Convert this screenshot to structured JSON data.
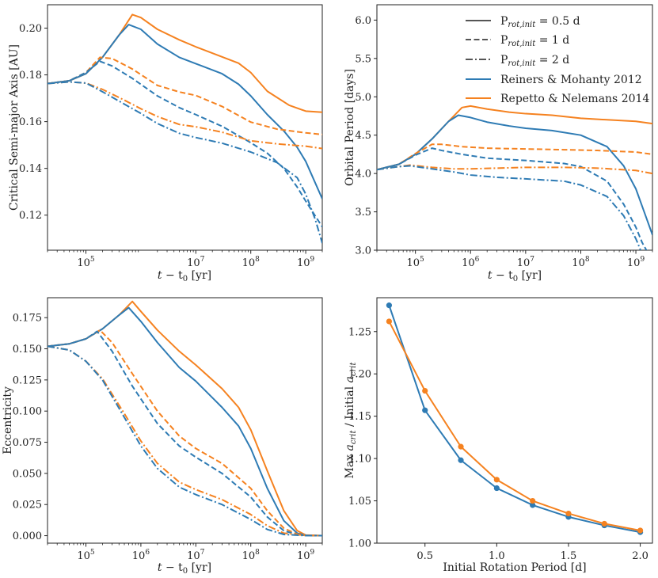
{
  "colors": {
    "blue": "#2e7bb4",
    "orange": "#f58220",
    "gray": "#555555"
  },
  "legend": {
    "items": [
      {
        "label": "P",
        "sub": "rot,init",
        "suffix": " = 0.5 d",
        "style": "solid"
      },
      {
        "label": "P",
        "sub": "rot,init",
        "suffix": " = 1 d",
        "style": "dashed"
      },
      {
        "label": "P",
        "sub": "rot,init",
        "suffix": " = 2 d",
        "style": "dashdot"
      },
      {
        "label": "Reiners & Mohanty 2012",
        "color": "blue"
      },
      {
        "label": "Repetto & Nelemans 2014",
        "color": "orange"
      }
    ]
  },
  "chart_data": [
    {
      "type": "line",
      "xlabel": "t − t₀ [yr]",
      "xlabel_main": "t",
      "xlabel_rest": " − t",
      "xlabel_sub": "0",
      "xlabel_unit": " [yr]",
      "ylabel": "Critical Semi-major Axis [AU]",
      "xscale": "log",
      "xlim": [
        20000,
        2000000000
      ],
      "ylim": [
        0.105,
        0.21
      ],
      "xticks": [
        {
          "v": 100000,
          "exp": "5"
        },
        {
          "v": 10000000,
          "exp": "7"
        },
        {
          "v": 100000000,
          "exp": "8"
        },
        {
          "v": 1000000000,
          "exp": "9"
        }
      ],
      "yticks": [
        {
          "v": 0.12,
          "label": "0.12"
        },
        {
          "v": 0.14,
          "label": "0.14"
        },
        {
          "v": 0.16,
          "label": "0.16"
        },
        {
          "v": 0.18,
          "label": "0.18"
        },
        {
          "v": 0.2,
          "label": "0.20"
        }
      ],
      "series": [
        {
          "color": "orange",
          "style": "solid",
          "x": [
            20000,
            50000,
            100000,
            200000,
            400000,
            700000,
            1000000,
            2000000,
            5000000,
            10000000,
            30000000,
            60000000,
            100000000,
            200000000,
            500000000,
            1000000000,
            2000000000
          ],
          "y": [
            0.1763,
            0.1775,
            0.1805,
            0.1875,
            0.197,
            0.2058,
            0.2045,
            0.1995,
            0.195,
            0.192,
            0.1877,
            0.185,
            0.181,
            0.173,
            0.167,
            0.1645,
            0.164
          ]
        },
        {
          "color": "blue",
          "style": "solid",
          "x": [
            20000,
            50000,
            100000,
            200000,
            400000,
            600000,
            1000000,
            2000000,
            5000000,
            10000000,
            30000000,
            60000000,
            100000000,
            200000000,
            400000000,
            700000000,
            1000000000,
            2000000000
          ],
          "y": [
            0.1763,
            0.1775,
            0.1805,
            0.1875,
            0.197,
            0.2015,
            0.1995,
            0.1932,
            0.1875,
            0.1848,
            0.1805,
            0.176,
            0.171,
            0.163,
            0.156,
            0.149,
            0.143,
            0.127
          ]
        },
        {
          "color": "orange",
          "style": "dashed",
          "x": [
            20000,
            50000,
            100000,
            180000,
            300000,
            700000,
            2000000,
            5000000,
            10000000,
            30000000,
            100000000,
            300000000,
            1000000000,
            2000000000
          ],
          "y": [
            0.1763,
            0.1775,
            0.181,
            0.1875,
            0.187,
            0.1825,
            0.1755,
            0.1727,
            0.1712,
            0.1665,
            0.1598,
            0.1568,
            0.1552,
            0.1545
          ]
        },
        {
          "color": "blue",
          "style": "dashed",
          "x": [
            20000,
            50000,
            100000,
            180000,
            300000,
            700000,
            2000000,
            5000000,
            10000000,
            30000000,
            100000000,
            200000000,
            400000000,
            700000000,
            1000000000,
            2000000000
          ],
          "y": [
            0.1763,
            0.1775,
            0.181,
            0.1858,
            0.1838,
            0.1785,
            0.171,
            0.166,
            0.163,
            0.158,
            0.151,
            0.1465,
            0.14,
            0.132,
            0.126,
            0.115
          ]
        },
        {
          "color": "orange",
          "style": "dashdot",
          "x": [
            20000,
            50000,
            100000,
            200000,
            500000,
            1000000,
            2000000,
            5000000,
            10000000,
            30000000,
            100000000,
            300000000,
            1000000000,
            2000000000
          ],
          "y": [
            0.1763,
            0.177,
            0.1765,
            0.1738,
            0.1692,
            0.1655,
            0.1622,
            0.1588,
            0.1578,
            0.1555,
            0.1518,
            0.1505,
            0.1495,
            0.1485
          ]
        },
        {
          "color": "blue",
          "style": "dashdot",
          "x": [
            20000,
            50000,
            100000,
            200000,
            500000,
            1000000,
            2000000,
            5000000,
            10000000,
            30000000,
            100000000,
            300000000,
            700000000,
            1000000000,
            1500000000,
            2000000000
          ],
          "y": [
            0.1763,
            0.177,
            0.1765,
            0.1728,
            0.1675,
            0.1635,
            0.1592,
            0.155,
            0.1532,
            0.1508,
            0.147,
            0.1425,
            0.136,
            0.129,
            0.118,
            0.108
          ]
        }
      ]
    },
    {
      "type": "line",
      "xlabel": "t − t₀ [yr]",
      "xlabel_main": "t",
      "xlabel_rest": " − t",
      "xlabel_sub": "0",
      "xlabel_unit": " [yr]",
      "ylabel": "Orbital Period [days]",
      "xscale": "log",
      "xlim": [
        20000,
        2000000000
      ],
      "ylim": [
        3.0,
        6.2
      ],
      "xticks": [
        {
          "v": 100000,
          "exp": "5"
        },
        {
          "v": 1000000,
          "exp": "6"
        },
        {
          "v": 10000000,
          "exp": "7"
        },
        {
          "v": 100000000,
          "exp": "8"
        },
        {
          "v": 1000000000,
          "exp": "9"
        }
      ],
      "yticks": [
        {
          "v": 3.0,
          "label": "3.0"
        },
        {
          "v": 3.5,
          "label": "3.5"
        },
        {
          "v": 4.0,
          "label": "4.0"
        },
        {
          "v": 4.5,
          "label": "4.5"
        },
        {
          "v": 5.0,
          "label": "5.0"
        },
        {
          "v": 5.5,
          "label": "5.5"
        },
        {
          "v": 6.0,
          "label": "6.0"
        }
      ],
      "series": [
        {
          "color": "orange",
          "style": "solid",
          "x": [
            20000,
            50000,
            100000,
            200000,
            400000,
            700000,
            1000000,
            2000000,
            5000000,
            10000000,
            30000000,
            100000000,
            300000000,
            1000000000,
            2000000000
          ],
          "y": [
            4.05,
            4.12,
            4.25,
            4.45,
            4.68,
            4.86,
            4.88,
            4.84,
            4.8,
            4.78,
            4.76,
            4.72,
            4.7,
            4.68,
            4.65
          ]
        },
        {
          "color": "blue",
          "style": "solid",
          "x": [
            20000,
            50000,
            100000,
            200000,
            400000,
            600000,
            1000000,
            2000000,
            5000000,
            10000000,
            30000000,
            100000000,
            300000000,
            600000000,
            1000000000,
            1500000000,
            2000000000
          ],
          "y": [
            4.05,
            4.12,
            4.25,
            4.45,
            4.68,
            4.76,
            4.73,
            4.67,
            4.62,
            4.59,
            4.56,
            4.5,
            4.35,
            4.1,
            3.8,
            3.45,
            3.2
          ]
        },
        {
          "color": "orange",
          "style": "dashed",
          "x": [
            20000,
            50000,
            100000,
            200000,
            300000,
            700000,
            2000000,
            10000000,
            50000000,
            200000000,
            1000000000,
            2000000000
          ],
          "y": [
            4.05,
            4.12,
            4.26,
            4.38,
            4.38,
            4.35,
            4.33,
            4.32,
            4.31,
            4.3,
            4.28,
            4.25
          ]
        },
        {
          "color": "blue",
          "style": "dashed",
          "x": [
            20000,
            50000,
            100000,
            200000,
            300000,
            700000,
            2000000,
            10000000,
            50000000,
            100000000,
            300000000,
            600000000,
            1000000000,
            1300000000,
            1700000000
          ],
          "y": [
            4.05,
            4.12,
            4.24,
            4.33,
            4.3,
            4.25,
            4.2,
            4.17,
            4.13,
            4.09,
            3.9,
            3.6,
            3.3,
            3.1,
            2.95
          ]
        },
        {
          "color": "orange",
          "style": "dashdot",
          "x": [
            20000,
            50000,
            80000,
            200000,
            500000,
            1000000,
            3000000,
            10000000,
            50000000,
            200000000,
            1000000000,
            2000000000
          ],
          "y": [
            4.05,
            4.09,
            4.11,
            4.08,
            4.06,
            4.06,
            4.07,
            4.08,
            4.08,
            4.07,
            4.04,
            4.0
          ]
        },
        {
          "color": "blue",
          "style": "dashdot",
          "x": [
            20000,
            50000,
            80000,
            200000,
            500000,
            1000000,
            3000000,
            10000000,
            50000000,
            100000000,
            300000000,
            600000000,
            1000000000,
            1300000000
          ],
          "y": [
            4.05,
            4.09,
            4.1,
            4.06,
            4.02,
            3.98,
            3.95,
            3.93,
            3.9,
            3.85,
            3.7,
            3.45,
            3.15,
            2.95
          ]
        }
      ]
    },
    {
      "type": "line",
      "xlabel": "t − t₀ [yr]",
      "xlabel_main": "t",
      "xlabel_rest": " − t",
      "xlabel_sub": "0",
      "xlabel_unit": " [yr]",
      "ylabel": "Eccentricity",
      "xscale": "log",
      "xlim": [
        20000,
        2000000000
      ],
      "ylim": [
        -0.006,
        0.191
      ],
      "xticks": [
        {
          "v": 100000,
          "exp": "5"
        },
        {
          "v": 1000000,
          "exp": "6"
        },
        {
          "v": 10000000,
          "exp": "7"
        },
        {
          "v": 100000000,
          "exp": "8"
        },
        {
          "v": 1000000000,
          "exp": "9"
        }
      ],
      "yticks": [
        {
          "v": 0.0,
          "label": "0.000"
        },
        {
          "v": 0.025,
          "label": "0.025"
        },
        {
          "v": 0.05,
          "label": "0.050"
        },
        {
          "v": 0.075,
          "label": "0.075"
        },
        {
          "v": 0.1,
          "label": "0.100"
        },
        {
          "v": 0.125,
          "label": "0.125"
        },
        {
          "v": 0.15,
          "label": "0.150"
        },
        {
          "v": 0.175,
          "label": "0.175"
        }
      ],
      "series": [
        {
          "color": "orange",
          "style": "solid",
          "x": [
            20000,
            50000,
            100000,
            200000,
            400000,
            700000,
            1000000,
            2000000,
            5000000,
            10000000,
            30000000,
            60000000,
            100000000,
            200000000,
            400000000,
            700000000,
            1000000000,
            2000000000
          ],
          "y": [
            0.152,
            0.154,
            0.158,
            0.166,
            0.177,
            0.188,
            0.18,
            0.165,
            0.148,
            0.137,
            0.118,
            0.103,
            0.085,
            0.052,
            0.02,
            0.004,
            0.0005,
            0.0
          ]
        },
        {
          "color": "blue",
          "style": "solid",
          "x": [
            20000,
            50000,
            100000,
            200000,
            400000,
            600000,
            1000000,
            2000000,
            5000000,
            10000000,
            30000000,
            60000000,
            100000000,
            200000000,
            400000000,
            700000000,
            1000000000,
            2000000000
          ],
          "y": [
            0.152,
            0.154,
            0.158,
            0.166,
            0.177,
            0.183,
            0.172,
            0.155,
            0.135,
            0.124,
            0.103,
            0.088,
            0.07,
            0.038,
            0.012,
            0.002,
            0.0003,
            0.0
          ]
        },
        {
          "color": "orange",
          "style": "dashed",
          "x": [
            20000,
            50000,
            100000,
            180000,
            300000,
            700000,
            2000000,
            5000000,
            10000000,
            30000000,
            100000000,
            200000000,
            400000000,
            700000000,
            1000000000,
            2000000000
          ],
          "y": [
            0.152,
            0.154,
            0.158,
            0.165,
            0.155,
            0.13,
            0.1,
            0.08,
            0.07,
            0.058,
            0.038,
            0.02,
            0.006,
            0.0012,
            0.0003,
            0.0
          ]
        },
        {
          "color": "blue",
          "style": "dashed",
          "x": [
            20000,
            50000,
            100000,
            160000,
            300000,
            700000,
            2000000,
            5000000,
            10000000,
            30000000,
            100000000,
            200000000,
            400000000,
            700000000,
            1000000000,
            2000000000
          ],
          "y": [
            0.152,
            0.154,
            0.158,
            0.164,
            0.148,
            0.12,
            0.09,
            0.072,
            0.063,
            0.05,
            0.031,
            0.015,
            0.004,
            0.0008,
            0.0002,
            0.0
          ]
        },
        {
          "color": "orange",
          "style": "dashdot",
          "x": [
            20000,
            50000,
            100000,
            200000,
            500000,
            1000000,
            2000000,
            5000000,
            10000000,
            30000000,
            100000000,
            200000000,
            400000000,
            1000000000,
            2000000000
          ],
          "y": [
            0.152,
            0.149,
            0.14,
            0.126,
            0.098,
            0.076,
            0.058,
            0.043,
            0.037,
            0.029,
            0.017,
            0.008,
            0.002,
            0.0002,
            0.0
          ]
        },
        {
          "color": "blue",
          "style": "dashdot",
          "x": [
            20000,
            50000,
            100000,
            200000,
            500000,
            1000000,
            2000000,
            5000000,
            10000000,
            30000000,
            100000000,
            200000000,
            400000000,
            1000000000,
            2000000000
          ],
          "y": [
            0.152,
            0.149,
            0.14,
            0.125,
            0.095,
            0.072,
            0.054,
            0.039,
            0.033,
            0.025,
            0.013,
            0.005,
            0.001,
            0.0001,
            0.0
          ]
        }
      ]
    },
    {
      "type": "line",
      "xlabel": "Initial Rotation Period [d]",
      "ylabel": "Max a_crit / Initial a_crit",
      "ylabel_a": "Max ",
      "ylabel_b": "a",
      "ylabel_c": "crit",
      "ylabel_d": " / Initial ",
      "ylabel_e": "a",
      "ylabel_f": "crit",
      "xscale": "linear",
      "xlim": [
        0.165,
        2.085
      ],
      "ylim": [
        1.0,
        1.29
      ],
      "xticks": [
        {
          "v": 0.5,
          "label": "0.5"
        },
        {
          "v": 1.0,
          "label": "1.0"
        },
        {
          "v": 1.5,
          "label": "1.5"
        },
        {
          "v": 2.0,
          "label": "2.0"
        }
      ],
      "yticks": [
        {
          "v": 1.0,
          "label": "1.00"
        },
        {
          "v": 1.05,
          "label": "1.05"
        },
        {
          "v": 1.1,
          "label": "1.10"
        },
        {
          "v": 1.15,
          "label": "1.15"
        },
        {
          "v": 1.2,
          "label": "1.20"
        },
        {
          "v": 1.25,
          "label": "1.25"
        }
      ],
      "series": [
        {
          "color": "blue",
          "style": "solid",
          "markers": true,
          "x": [
            0.25,
            0.5,
            0.75,
            1.0,
            1.25,
            1.5,
            1.75,
            2.0
          ],
          "y": [
            1.281,
            1.157,
            1.098,
            1.065,
            1.045,
            1.031,
            1.021,
            1.013
          ]
        },
        {
          "color": "orange",
          "style": "solid",
          "markers": true,
          "x": [
            0.25,
            0.5,
            0.75,
            1.0,
            1.25,
            1.5,
            1.75,
            2.0
          ],
          "y": [
            1.262,
            1.18,
            1.114,
            1.075,
            1.05,
            1.035,
            1.023,
            1.015
          ]
        }
      ]
    }
  ]
}
